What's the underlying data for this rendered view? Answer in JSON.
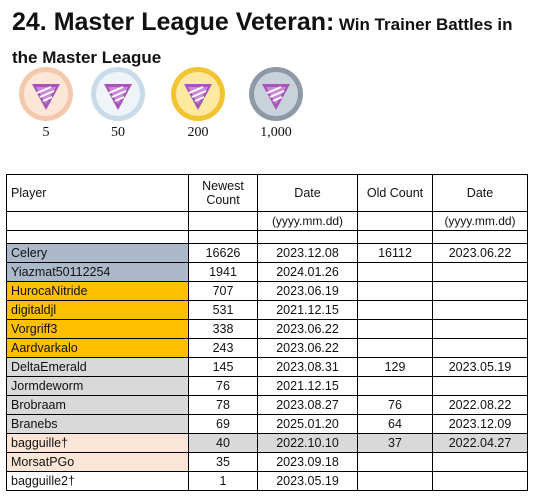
{
  "heading": {
    "number_title": "24. Master League Veteran:",
    "description": "Win Trainer Battles in the Master League"
  },
  "medals": [
    {
      "label": "5",
      "icon": "bronze-medal-icon",
      "ring": "#f3c9ad",
      "inner": "#fbe6d8"
    },
    {
      "label": "50",
      "icon": "silver-medal-icon",
      "ring": "#c9dbe8",
      "inner": "#eef4f8"
    },
    {
      "label": "200",
      "icon": "gold-medal-icon",
      "ring": "#f2c431",
      "inner": "#fdeaa0"
    },
    {
      "label": "1,000",
      "icon": "platinum-medal-icon",
      "ring": "#8d9aa6",
      "inner": "#c9d2da"
    }
  ],
  "table": {
    "headers": [
      "Player",
      "Newest Count",
      "Date",
      "Old Count",
      "Date"
    ],
    "date_format": "(yyyy.mm.dd)",
    "rows": [
      {
        "player": "Celery",
        "newest": "16626",
        "date": "2023.12.08",
        "old": "16112",
        "old_date": "2023.06.22",
        "color": "#acb9ca"
      },
      {
        "player": "Yiazmat50112254",
        "newest": "1941",
        "date": "2024.01.26",
        "old": "",
        "old_date": "",
        "color": "#acb9ca"
      },
      {
        "player": "HurocaNitride",
        "newest": "707",
        "date": "2023.06.19",
        "old": "",
        "old_date": "",
        "color": "#ffc000"
      },
      {
        "player": "digitaldjl",
        "newest": "531",
        "date": "2021.12.15",
        "old": "",
        "old_date": "",
        "color": "#ffc000"
      },
      {
        "player": "Vorgriff3",
        "newest": "338",
        "date": "2023.06.22",
        "old": "",
        "old_date": "",
        "color": "#ffc000"
      },
      {
        "player": "Aardvarkalo",
        "newest": "243",
        "date": "2023.06.22",
        "old": "",
        "old_date": "",
        "color": "#ffc000"
      },
      {
        "player": "DeltaEmerald",
        "newest": "145",
        "date": "2023.08.31",
        "old": "129",
        "old_date": "2023.05.19",
        "color": "#d9d9d9"
      },
      {
        "player": "Jormdeworm",
        "newest": "76",
        "date": "2021.12.15",
        "old": "",
        "old_date": "",
        "color": "#d9d9d9"
      },
      {
        "player": "Brobraam",
        "newest": "78",
        "date": "2023.08.27",
        "old": "76",
        "old_date": "2022.08.22",
        "color": "#d9d9d9"
      },
      {
        "player": "Branebs",
        "newest": "69",
        "date": "2025.01.20",
        "old": "64",
        "old_date": "2023.12.09",
        "color": "#d9d9d9"
      },
      {
        "player": "bagguille†",
        "newest": "40",
        "date": "2022.10.10",
        "old": "37",
        "old_date": "2022.04.27",
        "color": "#fbe5d6",
        "row_color": "#d9d9d9"
      },
      {
        "player": "MorsatPGo",
        "newest": "35",
        "date": "2023.09.18",
        "old": "",
        "old_date": "",
        "color": "#fbe5d6"
      },
      {
        "player": "bagguille2†",
        "newest": "1",
        "date": "2023.05.19",
        "old": "",
        "old_date": "",
        "color": "#ffffff"
      }
    ]
  }
}
